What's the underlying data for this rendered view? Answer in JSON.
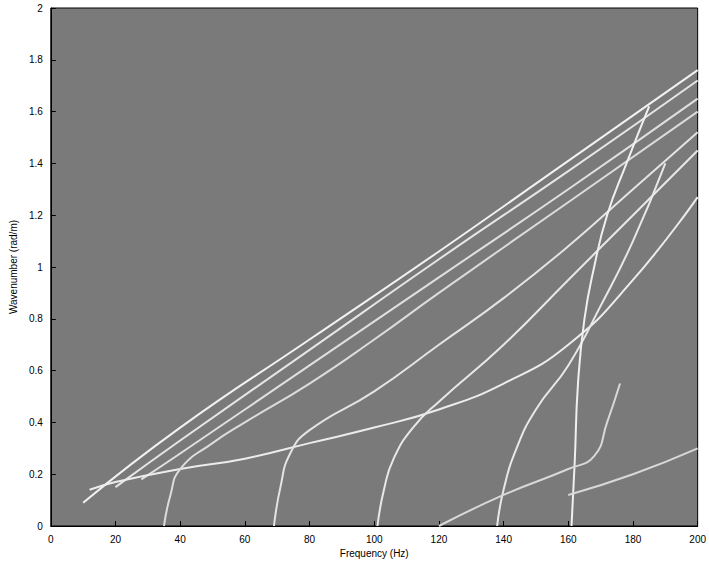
{
  "chart_data": {
    "type": "line",
    "xlabel": "Frequency (Hz)",
    "ylabel": "Wavenumber (rad/m)",
    "xlim": [
      0,
      200
    ],
    "xticks": [
      0,
      20,
      40,
      60,
      80,
      100,
      120,
      140,
      160,
      180,
      200
    ],
    "ylim": [
      0,
      2
    ],
    "yticks": [
      0,
      0.2,
      0.4,
      0.6,
      0.8,
      1,
      1.2,
      1.4,
      1.6,
      1.8,
      2
    ],
    "grid": false,
    "series": [
      {
        "color": "#f2f2f2",
        "x": [
          10,
          40,
          80,
          120,
          160,
          200
        ],
        "values": [
          0.09,
          0.38,
          0.72,
          1.06,
          1.41,
          1.76
        ]
      },
      {
        "color": "#e6e6e6",
        "x": [
          20,
          40,
          80,
          120,
          160,
          200
        ],
        "values": [
          0.15,
          0.33,
          0.68,
          1.03,
          1.37,
          1.72
        ]
      },
      {
        "color": "#e0e0e0",
        "x": [
          28,
          40,
          80,
          120,
          160,
          200
        ],
        "values": [
          0.18,
          0.28,
          0.62,
          0.96,
          1.3,
          1.65
        ]
      },
      {
        "color": "#ececec",
        "x": [
          12,
          20,
          40,
          60,
          80,
          100,
          120,
          140,
          160,
          180,
          200
        ],
        "values": [
          0.14,
          0.17,
          0.22,
          0.26,
          0.32,
          0.38,
          0.45,
          0.55,
          0.7,
          0.95,
          1.27
        ]
      },
      {
        "color": "#dcdcdc",
        "x": [
          35,
          37,
          40,
          50,
          60,
          80,
          100,
          120,
          160,
          200
        ],
        "values": [
          0,
          0.12,
          0.22,
          0.32,
          0.4,
          0.55,
          0.72,
          0.9,
          1.25,
          1.6
        ]
      },
      {
        "color": "#e4e4e4",
        "x": [
          69,
          71,
          74,
          80,
          100,
          120,
          140,
          160,
          180,
          200
        ],
        "values": [
          0,
          0.15,
          0.28,
          0.37,
          0.52,
          0.7,
          0.88,
          1.08,
          1.3,
          1.52
        ]
      },
      {
        "color": "#e8e8e8",
        "x": [
          101,
          103,
          106,
          112,
          120,
          140,
          160,
          180,
          200
        ],
        "values": [
          0,
          0.14,
          0.26,
          0.38,
          0.48,
          0.7,
          0.95,
          1.2,
          1.45
        ]
      },
      {
        "color": "#e8e8e8",
        "x": [
          138,
          140,
          144,
          150,
          160,
          170,
          180,
          190
        ],
        "values": [
          0,
          0.14,
          0.3,
          0.45,
          0.62,
          0.85,
          1.1,
          1.4
        ]
      },
      {
        "color": "#f0f0f0",
        "x": [
          161,
          162,
          163,
          165,
          168,
          172,
          178,
          185
        ],
        "values": [
          0,
          0.25,
          0.55,
          0.8,
          1.0,
          1.2,
          1.4,
          1.62
        ]
      },
      {
        "color": "#d8d8d8",
        "x": [
          120,
          140,
          160,
          168,
          172,
          176
        ],
        "values": [
          0,
          0.12,
          0.22,
          0.27,
          0.4,
          0.55
        ]
      },
      {
        "color": "#d8d8d8",
        "x": [
          160,
          180,
          200
        ],
        "values": [
          0.12,
          0.2,
          0.3
        ]
      }
    ]
  }
}
